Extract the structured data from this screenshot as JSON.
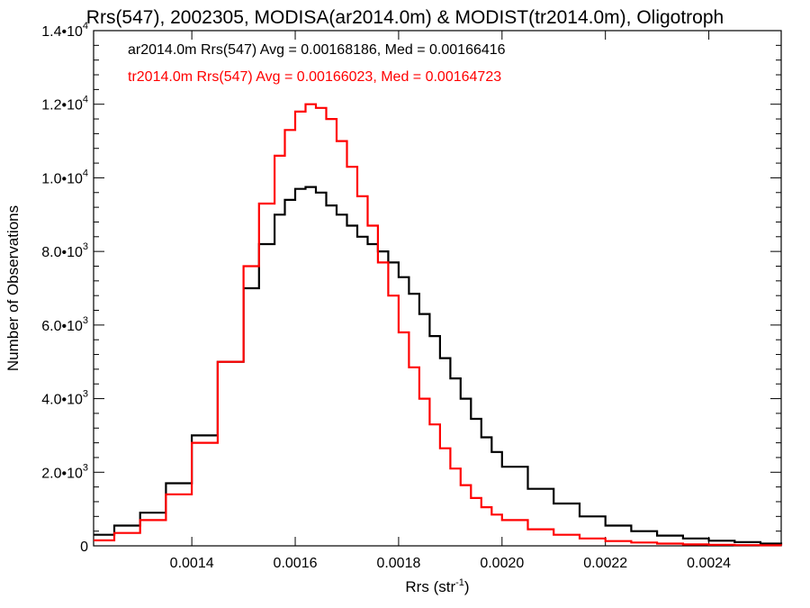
{
  "chart_data": {
    "type": "histogram-step",
    "title": "Rrs(547), 2002305, MODISA(ar2014.0m) & MODIST(tr2014.0m), Oligotroph",
    "xlabel": "Rrs (str",
    "xlabel_sup": "-1",
    "xlabel_suffix": ")",
    "ylabel": "Number of Observations",
    "xlim": [
      0.00121,
      0.00254
    ],
    "ylim": [
      0,
      14000
    ],
    "x_ticks": [
      {
        "value": 0.0014,
        "label": "0.0014"
      },
      {
        "value": 0.0016,
        "label": "0.0016"
      },
      {
        "value": 0.0018,
        "label": "0.0018"
      },
      {
        "value": 0.002,
        "label": "0.0020"
      },
      {
        "value": 0.0022,
        "label": "0.0022"
      },
      {
        "value": 0.0024,
        "label": "0.0024"
      }
    ],
    "y_ticks": [
      {
        "value": 0,
        "mant": "0",
        "exp": ""
      },
      {
        "value": 2000,
        "mant": "2.0•10",
        "exp": "3"
      },
      {
        "value": 4000,
        "mant": "4.0•10",
        "exp": "3"
      },
      {
        "value": 6000,
        "mant": "6.0•10",
        "exp": "3"
      },
      {
        "value": 8000,
        "mant": "8.0•10",
        "exp": "3"
      },
      {
        "value": 10000,
        "mant": "1.0•10",
        "exp": "4"
      },
      {
        "value": 12000,
        "mant": "1.2•10",
        "exp": "4"
      },
      {
        "value": 14000,
        "mant": "1.4•10",
        "exp": "4"
      }
    ],
    "annotations": [
      {
        "text": "ar2014.0m Rrs(547) Avg = 0.00168186, Med = 0.00166416",
        "color": "#000000"
      },
      {
        "text": "tr2014.0m Rrs(547) Avg = 0.00166023, Med = 0.00164723",
        "color": "#ff0000"
      }
    ],
    "series": [
      {
        "color": "#000000",
        "x": [
          0.00121,
          0.00125,
          0.0013,
          0.00135,
          0.0014,
          0.00145,
          0.0015,
          0.00153,
          0.00156,
          0.00158,
          0.0016,
          0.00162,
          0.00164,
          0.00166,
          0.00168,
          0.0017,
          0.00172,
          0.00174,
          0.00176,
          0.00178,
          0.0018,
          0.00182,
          0.00184,
          0.00186,
          0.00188,
          0.0019,
          0.00192,
          0.00194,
          0.00196,
          0.00198,
          0.002,
          0.00205,
          0.0021,
          0.00215,
          0.0022,
          0.00225,
          0.0023,
          0.00235,
          0.0024,
          0.00245,
          0.0025,
          0.00254
        ],
        "y": [
          300,
          550,
          900,
          1700,
          3000,
          5000,
          7000,
          8200,
          9000,
          9400,
          9700,
          9750,
          9600,
          9250,
          9000,
          8700,
          8400,
          8200,
          8000,
          7700,
          7300,
          6850,
          6300,
          5700,
          5100,
          4550,
          4000,
          3450,
          2950,
          2550,
          2150,
          1550,
          1150,
          800,
          550,
          400,
          280,
          200,
          140,
          100,
          60,
          40
        ]
      },
      {
        "color": "#ff0000",
        "x": [
          0.00121,
          0.00125,
          0.0013,
          0.00135,
          0.0014,
          0.00145,
          0.0015,
          0.00153,
          0.00156,
          0.00158,
          0.0016,
          0.00162,
          0.00164,
          0.00166,
          0.00168,
          0.0017,
          0.00172,
          0.00174,
          0.00176,
          0.00178,
          0.0018,
          0.00182,
          0.00184,
          0.00186,
          0.00188,
          0.0019,
          0.00192,
          0.00194,
          0.00196,
          0.00198,
          0.002,
          0.00205,
          0.0021,
          0.00215,
          0.0022,
          0.00225,
          0.0023,
          0.00235,
          0.0024,
          0.00245,
          0.0025,
          0.00254
        ],
        "y": [
          150,
          350,
          700,
          1400,
          2800,
          5000,
          7600,
          9300,
          10600,
          11300,
          11800,
          12000,
          11900,
          11600,
          11000,
          10300,
          9500,
          8700,
          7700,
          6800,
          5800,
          4850,
          4000,
          3300,
          2650,
          2100,
          1650,
          1300,
          1050,
          850,
          700,
          450,
          300,
          200,
          130,
          90,
          60,
          40,
          30,
          20,
          15,
          10
        ]
      }
    ]
  }
}
